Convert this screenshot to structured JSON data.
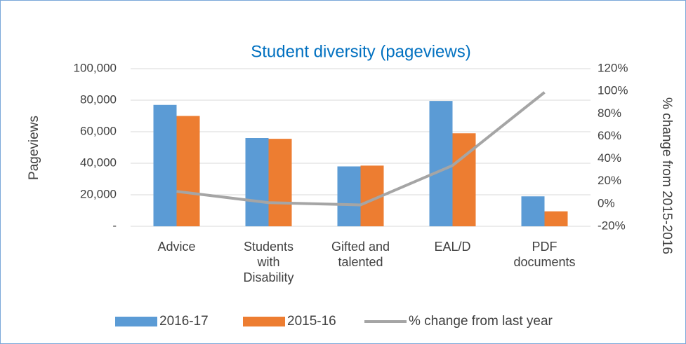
{
  "chart_data": {
    "type": "bar-line",
    "title": "Student diversity (pageviews)",
    "categories": [
      "Advice",
      "Students with Disability",
      "Gifted and talented",
      "EAL/D",
      "PDF documents"
    ],
    "series": [
      {
        "name": "2016-17",
        "color": "#5b9bd5",
        "type": "bar",
        "values": [
          77000,
          56000,
          38000,
          79500,
          19000
        ]
      },
      {
        "name": "2015-16",
        "color": "#ed7d31",
        "type": "bar",
        "values": [
          70000,
          55500,
          38500,
          59000,
          9500
        ]
      },
      {
        "name": "% change from last year",
        "color": "#a5a5a5",
        "type": "line",
        "axis": "y2",
        "values": [
          11,
          1,
          -1,
          34,
          99
        ]
      }
    ],
    "ylabel": "Pageviews",
    "y2label": "% change from 2015-2016",
    "ylim": [
      0,
      100000
    ],
    "yticks": [
      {
        "value": 0,
        "label": "-"
      },
      {
        "value": 20000,
        "label": "20,000"
      },
      {
        "value": 40000,
        "label": "40,000"
      },
      {
        "value": 60000,
        "label": "60,000"
      },
      {
        "value": 80000,
        "label": "80,000"
      },
      {
        "value": 100000,
        "label": "100,000"
      }
    ],
    "y2lim": [
      -20,
      120
    ],
    "y2ticks": [
      {
        "value": -20,
        "label": "-20%"
      },
      {
        "value": 0,
        "label": "0%"
      },
      {
        "value": 20,
        "label": "20%"
      },
      {
        "value": 40,
        "label": "40%"
      },
      {
        "value": 60,
        "label": "60%"
      },
      {
        "value": 80,
        "label": "80%"
      },
      {
        "value": 100,
        "label": "100%"
      },
      {
        "value": 120,
        "label": "120%"
      }
    ],
    "grid": true,
    "legend": "bottom"
  }
}
